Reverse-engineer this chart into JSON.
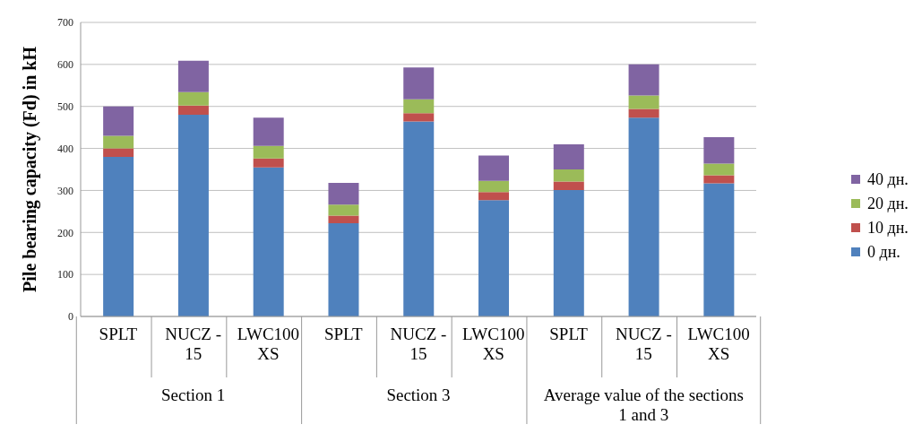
{
  "chart_data": {
    "type": "bar",
    "stacked": true,
    "ylabel": "Pile bearing capacity (Fd) in kH",
    "categories": [
      "SPLT",
      "NUCZ - 15",
      "LWC100 XS",
      "SPLT",
      "NUCZ - 15",
      "LWC100 XS",
      "SPLT",
      "NUCZ - 15",
      "LWC100 XS"
    ],
    "series": [
      {
        "name": "0 дн.",
        "color": "#4f81bd",
        "values": [
          380,
          480,
          355,
          222,
          464,
          277,
          301,
          473,
          317
        ]
      },
      {
        "name": "10 дн.",
        "color": "#c0504d",
        "values": [
          20,
          22,
          21,
          18,
          20,
          19,
          20,
          21,
          19
        ]
      },
      {
        "name": "20 дн.",
        "color": "#9bbb59",
        "values": [
          30,
          32,
          30,
          26,
          33,
          27,
          29,
          32,
          28
        ]
      },
      {
        "name": "40 дн.",
        "color": "#8064a2",
        "values": [
          70,
          75,
          67,
          52,
          76,
          60,
          60,
          74,
          63
        ]
      }
    ],
    "ylim": [
      0,
      700
    ],
    "yticks": [
      0,
      100,
      200,
      300,
      400,
      500,
      600,
      700
    ],
    "grid": "y",
    "legend": "right",
    "annotations": [
      "Section 1",
      "Section 3",
      "Average value of the sections 1 and 3"
    ]
  }
}
